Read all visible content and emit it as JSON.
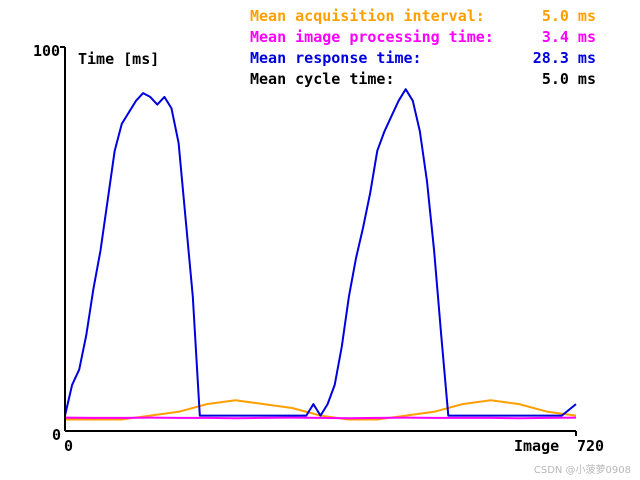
{
  "stats": [
    {
      "label": "Mean acquisition interval:",
      "value": "5.0 ms",
      "color": "#ff9f00"
    },
    {
      "label": "Mean image processing time:",
      "value": "3.4 ms",
      "color": "#ff00ff"
    },
    {
      "label": "Mean response time:",
      "value": "28.3 ms",
      "color": "#0000dd"
    },
    {
      "label": "Mean cycle time:",
      "value": "5.0 ms",
      "color": "#000000"
    }
  ],
  "watermark": "CSDN @小菠萝0908",
  "chart_data": {
    "type": "line",
    "xlabel": "Image",
    "ylabel": "Time [ms]",
    "xlim": [
      0,
      720
    ],
    "ylim": [
      0,
      100
    ],
    "x_tick_labels": [
      "0",
      "720"
    ],
    "y_tick_labels": [
      "0",
      "100"
    ],
    "grid": false,
    "series": [
      {
        "color": "#0000dd",
        "x": [
          0,
          10,
          20,
          30,
          40,
          50,
          60,
          70,
          80,
          90,
          100,
          110,
          120,
          130,
          140,
          150,
          160,
          170,
          180,
          190,
          200,
          210,
          220,
          230,
          240,
          260,
          280,
          300,
          320,
          340,
          350,
          360,
          370,
          380,
          390,
          400,
          410,
          420,
          430,
          440,
          450,
          460,
          470,
          480,
          490,
          500,
          510,
          520,
          530,
          540,
          560,
          580,
          600,
          620,
          640,
          660,
          680,
          700,
          720
        ],
        "y": [
          4,
          12,
          16,
          25,
          37,
          47,
          60,
          73,
          80,
          83,
          86,
          88,
          87,
          85,
          87,
          84,
          75,
          55,
          35,
          4,
          4,
          4,
          4,
          4,
          4,
          4,
          4,
          4,
          4,
          4,
          7,
          4,
          7,
          12,
          22,
          35,
          45,
          53,
          62,
          73,
          78,
          82,
          86,
          89,
          86,
          78,
          65,
          47,
          25,
          4,
          4,
          4,
          4,
          4,
          4,
          4,
          4,
          4,
          7
        ]
      },
      {
        "color": "#ff9f00",
        "x": [
          0,
          40,
          80,
          120,
          160,
          200,
          240,
          280,
          320,
          360,
          400,
          440,
          480,
          520,
          560,
          600,
          640,
          680,
          720
        ],
        "y": [
          3,
          3,
          3,
          4,
          5,
          7,
          8,
          7,
          6,
          4,
          3,
          3,
          4,
          5,
          7,
          8,
          7,
          5,
          4
        ]
      },
      {
        "color": "#ff00ff",
        "x": [
          0,
          40,
          80,
          120,
          160,
          200,
          240,
          280,
          320,
          360,
          400,
          440,
          480,
          520,
          560,
          600,
          640,
          680,
          720
        ],
        "y": [
          3.5,
          3.4,
          3.4,
          3.5,
          3.4,
          3.4,
          3.3,
          3.4,
          3.5,
          3.4,
          3.3,
          3.4,
          3.5,
          3.4,
          3.4,
          3.4,
          3.3,
          3.4,
          3.5
        ]
      }
    ]
  }
}
